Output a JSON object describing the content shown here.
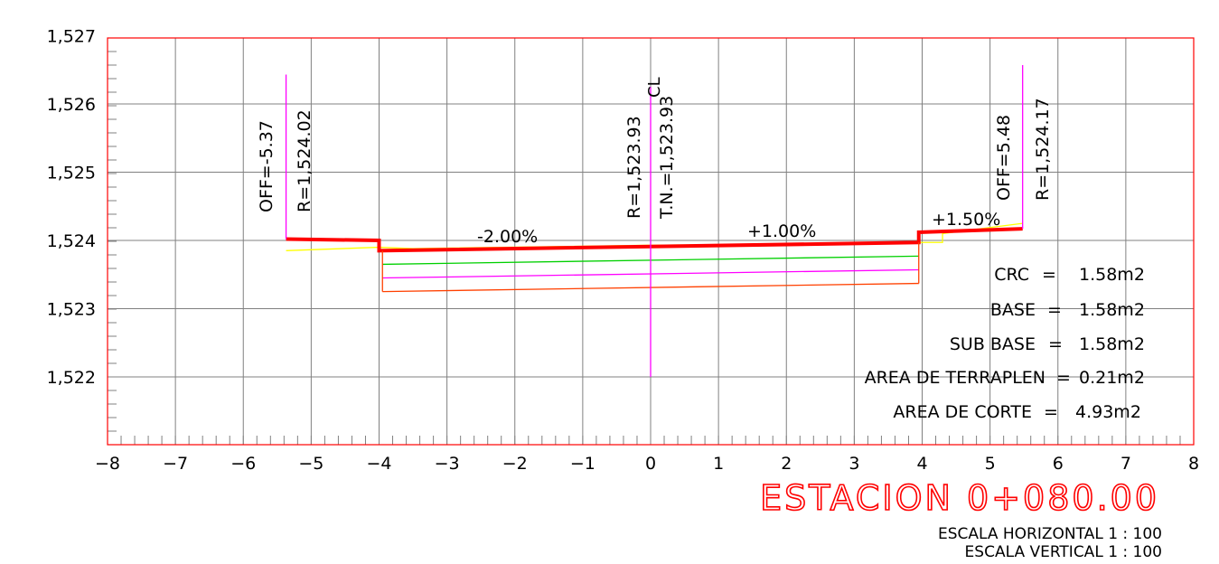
{
  "title": "ESTACION 0+080.00",
  "scale_h": "ESCALA HORIZONTAL 1 : 100",
  "scale_v": "ESCALA VERTICAL 1 : 100",
  "colors": {
    "frame": "#ff0000",
    "grid": "#808080",
    "surface": "#ff0000",
    "ground": "#ffff00",
    "layer_base": "#00d000",
    "layer_subbase": "#ff00ff",
    "layer_bottom": "#ff4000",
    "marker": "#ff00ff",
    "text": "#000000"
  },
  "axes": {
    "x_ticks": [
      "-8",
      "-7",
      "-6",
      "-5",
      "-4",
      "-3",
      "-2",
      "-1",
      "0",
      "1",
      "2",
      "3",
      "4",
      "5",
      "6",
      "7",
      "8"
    ],
    "y_ticks": [
      "1,527",
      "1,526",
      "1,525",
      "1,524",
      "1,523",
      "1,522"
    ]
  },
  "chart_data": {
    "type": "line",
    "xlim": [
      -8,
      8
    ],
    "ylim": [
      1521,
      1527
    ],
    "grid": true,
    "series": [
      {
        "x": [
          -5.37,
          -4.0,
          -4.0,
          3.95,
          3.95,
          5.48
        ],
        "y": [
          1524.02,
          1524.0,
          1523.85,
          1523.97,
          1524.12,
          1524.17
        ]
      },
      {
        "x": [
          -5.37,
          -4.0,
          -3.5,
          0.0,
          3.95,
          4.3,
          4.3,
          5.48
        ],
        "y": [
          1523.85,
          1523.9,
          1523.88,
          1523.93,
          1523.97,
          1523.97,
          1524.1,
          1524.25
        ]
      },
      {
        "x": [
          -3.95,
          3.95
        ],
        "y": [
          1523.65,
          1523.77
        ]
      },
      {
        "x": [
          -3.95,
          3.95
        ],
        "y": [
          1523.45,
          1523.57
        ]
      },
      {
        "x": [
          -3.95,
          3.95
        ],
        "y": [
          1523.25,
          1523.37
        ]
      }
    ],
    "markers": [
      {
        "x": -5.37,
        "y_top": 1526.43,
        "y_bottom": 1524.02
      },
      {
        "x": 0.0,
        "y_top": 1526.25,
        "y_bottom": 1522.0
      },
      {
        "x": 5.48,
        "y_top": 1526.57,
        "y_bottom": 1524.17
      }
    ]
  },
  "annotations": {
    "off_left": "OFF=-5.37",
    "r_left": "R=1,524.02",
    "r_center": "R=1,523.93",
    "tn_center": "T.N.=1,523.93",
    "cl_symbol": "CL",
    "off_right": "OFF=5.48",
    "r_right": "R=1,524.17",
    "slope_left": "-2.00%",
    "slope_center": "+1.00%",
    "slope_right": "+1.50%"
  },
  "areas": [
    {
      "label": "CRC",
      "value": "1.58m2"
    },
    {
      "label": "BASE",
      "value": "1.58m2"
    },
    {
      "label": "SUB BASE",
      "value": "1.58m2"
    },
    {
      "label": "AREA DE TERRAPLEN",
      "value": "0.21m2"
    },
    {
      "label": "AREA DE CORTE",
      "value": "4.93m2"
    }
  ]
}
